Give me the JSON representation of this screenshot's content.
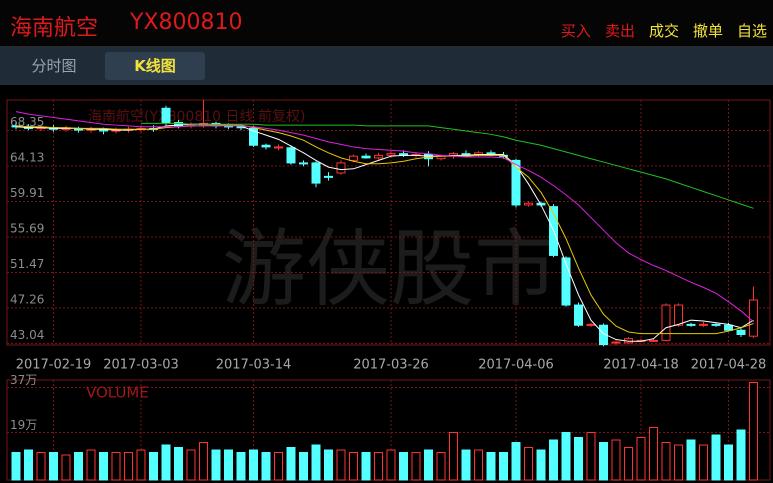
{
  "header": {
    "title": "海南航空",
    "code": "YX800810",
    "actions": [
      "买入",
      "卖出",
      "成交",
      "撤单",
      "自选"
    ]
  },
  "tabs": [
    "分时图",
    "K线图"
  ],
  "watermark": "游侠股市",
  "chart_data": {
    "type": "candlestick",
    "title": "海南航空(YX800810 日线 前复权)",
    "categories": [
      null,
      null,
      null,
      "2017-02-19",
      null,
      null,
      null,
      null,
      null,
      null,
      "2017-03-03",
      null,
      null,
      null,
      null,
      null,
      null,
      null,
      null,
      "2017-03-14",
      null,
      null,
      null,
      null,
      null,
      null,
      null,
      null,
      null,
      null,
      "2017-03-26",
      null,
      null,
      null,
      null,
      null,
      null,
      null,
      null,
      null,
      "2017-04-06",
      null,
      null,
      null,
      null,
      null,
      null,
      null,
      null,
      null,
      "2017-04-18",
      null,
      null,
      null,
      null,
      null,
      null,
      "2017-04-28",
      null,
      null
    ],
    "open": [
      68.9,
      68.8,
      68.6,
      68.7,
      68.5,
      68.6,
      68.4,
      68.5,
      68.3,
      68.4,
      68.5,
      68.6,
      71.0,
      69.3,
      68.9,
      69.0,
      69.2,
      68.9,
      68.8,
      68.6,
      66.6,
      66.4,
      66.3,
      64.5,
      64.5,
      62.9,
      63.3,
      64.8,
      65.3,
      65.1,
      65.4,
      65.6,
      65.4,
      65.5,
      65.0,
      65.3,
      65.6,
      65.5,
      65.7,
      65.4,
      64.8,
      59.5,
      59.7,
      59.3,
      53.2,
      47.6,
      45.2,
      45.2,
      43.1,
      43.1,
      43.4,
      43.4,
      43.4,
      45.2,
      45.3,
      45.2,
      45.3,
      45.2,
      44.6,
      43.9
    ],
    "high": [
      69.3,
      69.1,
      69.0,
      69.0,
      68.9,
      68.8,
      68.8,
      68.7,
      68.7,
      68.8,
      68.9,
      69.0,
      71.3,
      69.6,
      69.3,
      72.0,
      69.4,
      69.2,
      69.1,
      68.9,
      66.8,
      66.7,
      66.6,
      64.8,
      64.7,
      63.4,
      64.8,
      65.5,
      65.6,
      65.7,
      65.9,
      66.0,
      65.8,
      65.9,
      65.5,
      65.8,
      66.0,
      65.9,
      66.0,
      65.8,
      65.0,
      59.9,
      59.9,
      59.6,
      53.4,
      47.9,
      45.5,
      45.4,
      43.4,
      43.8,
      43.6,
      43.6,
      47.8,
      47.8,
      45.5,
      45.6,
      45.5,
      45.5,
      45.0,
      49.8
    ],
    "low": [
      68.5,
      68.4,
      68.3,
      68.2,
      68.2,
      68.1,
      68.1,
      67.9,
      68.0,
      68.1,
      68.2,
      68.2,
      69.0,
      68.6,
      68.6,
      68.7,
      68.6,
      68.5,
      68.4,
      66.4,
      66.1,
      66.0,
      64.3,
      64.1,
      61.6,
      62.4,
      63.1,
      64.6,
      65.0,
      64.9,
      65.1,
      65.2,
      65.1,
      64.1,
      64.8,
      65.0,
      65.3,
      65.2,
      65.3,
      65.0,
      59.2,
      59.3,
      59.3,
      53.3,
      47.4,
      45.0,
      45.0,
      42.7,
      42.9,
      43.0,
      43.2,
      43.2,
      43.3,
      45.0,
      45.0,
      45.0,
      45.0,
      44.5,
      43.8,
      43.7
    ],
    "close": [
      68.8,
      68.6,
      68.7,
      68.5,
      68.6,
      68.4,
      68.5,
      68.3,
      68.4,
      68.5,
      68.6,
      68.5,
      69.3,
      68.9,
      69.0,
      69.2,
      68.9,
      68.8,
      68.7,
      66.6,
      66.4,
      66.4,
      64.5,
      64.4,
      62.1,
      62.8,
      64.5,
      65.3,
      65.1,
      65.4,
      65.6,
      65.4,
      65.5,
      65.0,
      65.3,
      65.6,
      65.5,
      65.7,
      65.4,
      65.3,
      59.5,
      59.7,
      59.5,
      53.5,
      47.6,
      45.2,
      45.3,
      42.9,
      43.2,
      43.6,
      43.4,
      43.4,
      47.6,
      47.6,
      45.2,
      45.3,
      45.2,
      44.6,
      44.1,
      48.2
    ],
    "up_color": "#ff3232",
    "down_color": "#54ffff",
    "ylim": [
      42.85,
      71.98
    ],
    "yticks": [
      43.04,
      47.26,
      51.47,
      55.69,
      59.91,
      64.13,
      68.35
    ],
    "lines": [
      {
        "color": "#ffffff",
        "values": [
          68.8,
          68.7,
          68.7,
          68.6,
          68.6,
          68.6,
          68.5,
          68.5,
          68.4,
          68.4,
          68.5,
          68.5,
          68.9,
          69.0,
          69.1,
          69.1,
          69.1,
          69.0,
          68.9,
          68.3,
          67.8,
          67.3,
          66.5,
          65.7,
          64.8,
          64.0,
          63.7,
          63.8,
          64.3,
          64.8,
          65.3,
          65.4,
          65.4,
          65.3,
          65.3,
          65.4,
          65.4,
          65.5,
          65.5,
          65.5,
          64.2,
          62.0,
          59.5,
          56.5,
          52.5,
          48.8,
          45.8,
          44.2,
          43.5,
          43.3,
          43.3,
          43.6,
          44.9,
          45.3,
          45.8,
          45.7,
          45.5,
          45.3,
          44.9,
          45.8
        ]
      },
      {
        "color": "#e6c800",
        "values": [
          68.9,
          68.8,
          68.8,
          68.7,
          68.7,
          68.6,
          68.6,
          68.6,
          68.5,
          68.5,
          68.5,
          68.5,
          68.7,
          68.8,
          68.9,
          68.9,
          69.0,
          69.0,
          69.0,
          68.7,
          68.4,
          68.1,
          67.7,
          67.2,
          66.4,
          65.7,
          65.1,
          64.7,
          64.4,
          64.4,
          64.5,
          64.7,
          65.0,
          65.2,
          65.3,
          65.3,
          65.3,
          65.4,
          65.4,
          65.4,
          64.0,
          62.8,
          61.0,
          58.5,
          55.5,
          52.0,
          48.8,
          46.5,
          45.1,
          44.4,
          44.2,
          44.2,
          44.2,
          44.2,
          44.2,
          44.2,
          44.2,
          44.5,
          44.9,
          45.4
        ]
      },
      {
        "color": "#e020e0",
        "values": [
          70.6,
          70.3,
          70.1,
          69.9,
          69.7,
          69.5,
          69.3,
          69.1,
          69.0,
          68.9,
          68.8,
          68.8,
          68.8,
          68.8,
          68.9,
          68.9,
          68.9,
          68.9,
          68.9,
          68.8,
          68.6,
          68.4,
          68.1,
          67.8,
          67.4,
          67.0,
          66.7,
          66.4,
          66.2,
          66.1,
          66.0,
          65.9,
          65.7,
          65.6,
          65.4,
          65.3,
          65.2,
          65.2,
          65.2,
          65.1,
          64.3,
          63.6,
          62.8,
          61.8,
          60.7,
          59.5,
          58.0,
          56.5,
          55.0,
          53.8,
          53.0,
          52.3,
          51.7,
          51.0,
          50.3,
          49.7,
          49.0,
          48.0,
          46.9,
          45.6
        ]
      },
      {
        "color": "#20c020",
        "values": [
          null,
          null,
          null,
          null,
          null,
          null,
          null,
          null,
          null,
          null,
          69.2,
          69.2,
          69.2,
          69.2,
          69.1,
          69.1,
          69.1,
          69.1,
          69.1,
          69.1,
          69.0,
          69.0,
          69.0,
          69.0,
          69.0,
          69.0,
          69.0,
          69.0,
          68.9,
          68.9,
          68.9,
          68.9,
          68.9,
          68.9,
          68.7,
          68.5,
          68.3,
          68.1,
          67.9,
          67.6,
          67.2,
          66.9,
          66.6,
          66.2,
          65.8,
          65.4,
          65.0,
          64.6,
          64.2,
          63.8,
          63.4,
          63.0,
          62.6,
          62.1,
          61.6,
          61.1,
          60.6,
          60.1,
          59.6,
          59.1
        ]
      }
    ],
    "volume": {
      "name": "VOLUME",
      "values": [
        11,
        12,
        11,
        11,
        10,
        11,
        12,
        11,
        11,
        11,
        12,
        11,
        14,
        13,
        12,
        15,
        12,
        12,
        11,
        12,
        11,
        11,
        13,
        11,
        14,
        12,
        12,
        11,
        11,
        11,
        12,
        11,
        11,
        12,
        11,
        19,
        12,
        12,
        11,
        11,
        15,
        13,
        12,
        16,
        19,
        17,
        19,
        15,
        16,
        13,
        17,
        21,
        15,
        14,
        16,
        14,
        18,
        14,
        20,
        39
      ],
      "ylim": [
        0,
        40
      ],
      "yticks": [
        {
          "value": 19,
          "label": "19万"
        },
        {
          "value": 37,
          "label": "37万"
        }
      ]
    }
  }
}
